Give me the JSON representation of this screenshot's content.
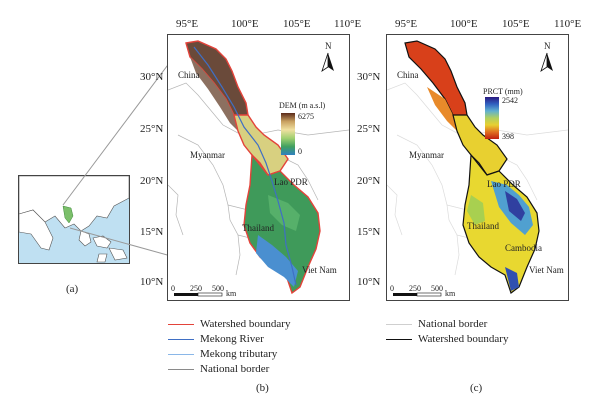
{
  "panel_a": {
    "label": "(a)"
  },
  "panel_b": {
    "label": "(b)",
    "lon_ticks": [
      "95°E",
      "100°E",
      "105°E",
      "110°E"
    ],
    "lat_ticks": [
      "30°N",
      "25°N",
      "20°N",
      "15°N",
      "10°N"
    ],
    "places": {
      "china": "China",
      "myanmar": "Myanmar",
      "lao": "Lao PDR",
      "thailand": "Thailand",
      "vietnam": "Viet Nam"
    },
    "colorbar": {
      "title": "DEM (m a.s.l)",
      "max": "6275",
      "min": "0"
    },
    "scalebar": {
      "start": "0",
      "mid": "250",
      "end": "500",
      "unit": "km"
    },
    "north": "N",
    "legend": [
      {
        "label": "Watershed boundary",
        "color": "#e3433a"
      },
      {
        "label": "Mekong River",
        "color": "#3f6fc4"
      },
      {
        "label": "Mekong tributary",
        "color": "#8ab7e8"
      },
      {
        "label": "National border",
        "color": "#8a8a8a"
      }
    ]
  },
  "panel_c": {
    "label": "(c)",
    "lon_ticks": [
      "95°E",
      "100°E",
      "105°E",
      "110°E"
    ],
    "lat_ticks": [
      "30°N",
      "25°N",
      "20°N",
      "15°N",
      "10°N"
    ],
    "places": {
      "china": "China",
      "myanmar": "Myanmar",
      "lao": "Lao PDR",
      "thailand": "Thailand",
      "cambodia": "Cambodia",
      "vietnam": "Viet Nam"
    },
    "colorbar": {
      "title": "PRCT (mm)",
      "max": "2542",
      "min": "398"
    },
    "scalebar": {
      "start": "0",
      "mid": "250",
      "end": "500",
      "unit": "km"
    },
    "north": "N",
    "legend": [
      {
        "label": "National border",
        "color": "#cfcfcf"
      },
      {
        "label": "Watershed boundary",
        "color": "#111111"
      }
    ]
  }
}
